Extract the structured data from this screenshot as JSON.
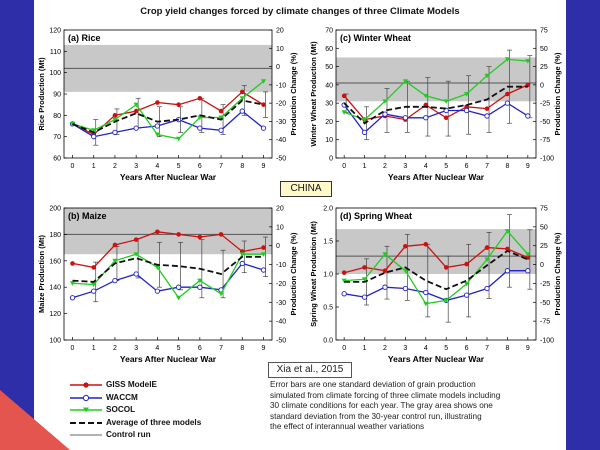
{
  "title": "Crop yield changes forced by climate changes of three Climate Models",
  "region_label": "CHINA",
  "citation": "Xia et al., 2015",
  "colors": {
    "giss": "#cc1111",
    "waccm": "#2222cc",
    "socol": "#22cc22",
    "average": "#111111",
    "control": "#999999",
    "band": "#c8c8c8",
    "stripe": "#2e2fa8"
  },
  "legend": [
    {
      "key": "giss",
      "label": "GISS ModelE"
    },
    {
      "key": "waccm",
      "label": "WACCM"
    },
    {
      "key": "socol",
      "label": "SOCOL"
    },
    {
      "key": "average",
      "label": "Average of three models"
    },
    {
      "key": "control",
      "label": "Control run"
    }
  ],
  "caption_lines": [
    "Error bars are one standard deviation of grain production",
    "simulated from climate forcing of three climate models including",
    "30 climate conditions for each year.  The gray area shows one",
    "standard deviation from the 30-year control run, illustrating",
    "the effect of interannual weather variations"
  ],
  "chart_data": [
    {
      "id": "rice",
      "type": "line",
      "panel_title": "(a) Rice",
      "xlabel": "Years After Nuclear War",
      "ylabel": "Rice Production (Mt)",
      "ylabel_right": "Production Change (%)",
      "x": [
        0,
        1,
        2,
        3,
        4,
        5,
        6,
        7,
        8,
        9
      ],
      "ylim": [
        60,
        120
      ],
      "yticks": [
        60,
        70,
        80,
        90,
        100,
        110,
        120
      ],
      "right_ylim": [
        -50,
        20
      ],
      "right_yticks": [
        -50,
        -40,
        -30,
        -20,
        -10,
        0,
        10,
        20
      ],
      "control": 102,
      "band": [
        91,
        113
      ],
      "series": [
        {
          "name": "GISS ModelE",
          "key": "giss",
          "values": [
            76,
            71,
            80,
            82,
            86,
            85,
            88,
            82,
            91,
            85
          ]
        },
        {
          "name": "WACCM",
          "key": "waccm",
          "values": [
            76,
            70,
            72,
            74,
            75,
            78,
            74,
            73,
            82,
            74
          ]
        },
        {
          "name": "SOCOL",
          "key": "socol",
          "values": [
            76,
            73,
            78,
            85,
            71,
            69,
            79,
            79,
            88,
            96
          ]
        },
        {
          "name": "Average of three models",
          "key": "average",
          "values": [
            76,
            72,
            77,
            81,
            77,
            78,
            80,
            78,
            87,
            85
          ]
        }
      ],
      "error": [
        0,
        6,
        6,
        7,
        7,
        6,
        8,
        7,
        7,
        6
      ]
    },
    {
      "id": "winterwheat",
      "type": "line",
      "panel_title": "(c) Winter Wheat",
      "xlabel": "Years After Nuclear War",
      "ylabel": "Winter Wheat Production (Mt)",
      "ylabel_right": "Production Change (%)",
      "x": [
        0,
        1,
        2,
        3,
        4,
        5,
        6,
        7,
        8,
        9
      ],
      "ylim": [
        0,
        70
      ],
      "yticks": [
        0,
        10,
        20,
        30,
        40,
        50,
        60,
        70
      ],
      "right_ylim": [
        -100,
        75
      ],
      "right_yticks": [
        -100,
        -75,
        -50,
        -25,
        0,
        25,
        50,
        75
      ],
      "control": 41,
      "band": [
        31,
        55
      ],
      "series": [
        {
          "name": "GISS ModelE",
          "key": "giss",
          "values": [
            34,
            21,
            23,
            21,
            29,
            22,
            28,
            27,
            35,
            40
          ]
        },
        {
          "name": "WACCM",
          "key": "waccm",
          "values": [
            29,
            14,
            24,
            22,
            22,
            26,
            26,
            23,
            30,
            23
          ]
        },
        {
          "name": "SOCOL",
          "key": "socol",
          "values": [
            25,
            21,
            31,
            42,
            34,
            31,
            35,
            45,
            54,
            53
          ]
        },
        {
          "name": "Average of three models",
          "key": "average",
          "values": [
            30,
            19,
            26,
            28,
            28,
            27,
            29,
            32,
            39,
            39
          ]
        }
      ],
      "error": [
        5,
        9,
        12,
        14,
        16,
        15,
        16,
        18,
        20,
        17
      ]
    },
    {
      "id": "maize",
      "type": "line",
      "panel_title": "(b) Maize",
      "xlabel": "Years After Nuclear War",
      "ylabel": "Maize Production (Mt)",
      "ylabel_right": "Production Change (%)",
      "x": [
        0,
        1,
        2,
        3,
        4,
        5,
        6,
        7,
        8,
        9
      ],
      "ylim": [
        100,
        200
      ],
      "yticks": [
        100,
        120,
        140,
        160,
        180,
        200
      ],
      "right_ylim": [
        -50,
        20
      ],
      "right_yticks": [
        -50,
        -40,
        -30,
        -20,
        -10,
        0,
        10,
        20
      ],
      "control": 180,
      "band": [
        165,
        200
      ],
      "series": [
        {
          "name": "GISS ModelE",
          "key": "giss",
          "values": [
            158,
            155,
            172,
            176,
            182,
            180,
            178,
            180,
            167,
            170
          ]
        },
        {
          "name": "WACCM",
          "key": "waccm",
          "values": [
            132,
            137,
            145,
            150,
            137,
            140,
            140,
            138,
            158,
            153
          ]
        },
        {
          "name": "SOCOL",
          "key": "socol",
          "values": [
            143,
            142,
            160,
            165,
            155,
            132,
            145,
            135,
            165,
            165
          ]
        },
        {
          "name": "Average of three models",
          "key": "average",
          "values": [
            145,
            144,
            158,
            162,
            157,
            156,
            154,
            150,
            163,
            163
          ]
        }
      ],
      "error": [
        0,
        15,
        13,
        15,
        17,
        18,
        22,
        18,
        12,
        15
      ]
    },
    {
      "id": "springwheat",
      "type": "line",
      "panel_title": "(d) Spring Wheat",
      "xlabel": "Years After Nuclear War",
      "ylabel": "Spring Wheat Production (Mt)",
      "ylabel_right": "Production Change (%)",
      "x": [
        0,
        1,
        2,
        3,
        4,
        5,
        6,
        7,
        8,
        9
      ],
      "ylim": [
        0.0,
        2.0
      ],
      "yticks": [
        0.0,
        0.5,
        1.0,
        1.5,
        2.0
      ],
      "right_ylim": [
        -100,
        75
      ],
      "right_yticks": [
        -100,
        -75,
        -50,
        -25,
        0,
        25,
        50,
        75
      ],
      "control": 1.27,
      "band": [
        1.0,
        1.68
      ],
      "series": [
        {
          "name": "GISS ModelE",
          "key": "giss",
          "values": [
            1.02,
            1.1,
            1.05,
            1.42,
            1.45,
            1.1,
            1.15,
            1.4,
            1.38,
            1.25
          ]
        },
        {
          "name": "WACCM",
          "key": "waccm",
          "values": [
            0.7,
            0.65,
            0.8,
            0.78,
            0.72,
            0.6,
            0.68,
            0.78,
            1.05,
            1.05
          ]
        },
        {
          "name": "SOCOL",
          "key": "socol",
          "values": [
            0.9,
            0.92,
            1.3,
            1.05,
            0.55,
            0.6,
            0.85,
            1.22,
            1.65,
            1.3
          ]
        },
        {
          "name": "Average of three models",
          "key": "average",
          "values": [
            0.88,
            0.88,
            1.02,
            1.1,
            0.9,
            0.77,
            0.9,
            1.13,
            1.35,
            1.22
          ]
        }
      ],
      "error": [
        0,
        0.35,
        0.4,
        0.5,
        0.55,
        0.5,
        0.55,
        0.5,
        0.55,
        0.45
      ]
    }
  ]
}
